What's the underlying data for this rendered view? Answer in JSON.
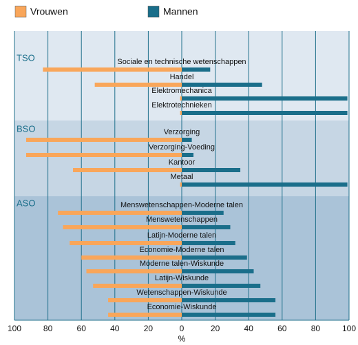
{
  "chart_data": {
    "type": "butterfly-bar",
    "groups": [
      {
        "name": "TSO",
        "categories": [
          "Sociale en technische wetenschappen",
          "Handel",
          "Elektromechanica",
          "Elektrotechnieken"
        ]
      },
      {
        "name": "BSO",
        "categories": [
          "Verzorging",
          "Verzorging-Voeding",
          "Kantoor",
          "Metaal"
        ]
      },
      {
        "name": "ASO",
        "categories": [
          "Menswetenschappen-Moderne talen",
          "Menswetenschappen",
          "Latijn-Moderne talen",
          "Economie-Moderne talen",
          "Moderne talen-Wiskunde",
          "Latijn-Wiskunde",
          "Wetenschappen-Wiskunde",
          "Economie-Wiskunde"
        ]
      }
    ],
    "series": [
      {
        "name": "Vrouwen",
        "color": "#f9a65a",
        "values": [
          -83,
          -52,
          -1,
          -1,
          -93,
          -93,
          -65,
          -1,
          -74,
          -71,
          -67,
          -60,
          -57,
          -53,
          -44,
          -44
        ]
      },
      {
        "name": "Mannen",
        "color": "#1a6e8a",
        "values": [
          17,
          48,
          99,
          99,
          6,
          7,
          35,
          99,
          25,
          29,
          32,
          39,
          43,
          47,
          56,
          56
        ]
      }
    ],
    "xlabel": "%",
    "xlim": [
      -100,
      100
    ],
    "xticks": [
      {
        "value": -100,
        "label": "100"
      },
      {
        "value": -80,
        "label": "80"
      },
      {
        "value": -60,
        "label": "60"
      },
      {
        "value": -40,
        "label": "40"
      },
      {
        "value": -20,
        "label": "20"
      },
      0,
      20,
      40,
      60,
      80,
      100
    ],
    "grid": true
  }
}
